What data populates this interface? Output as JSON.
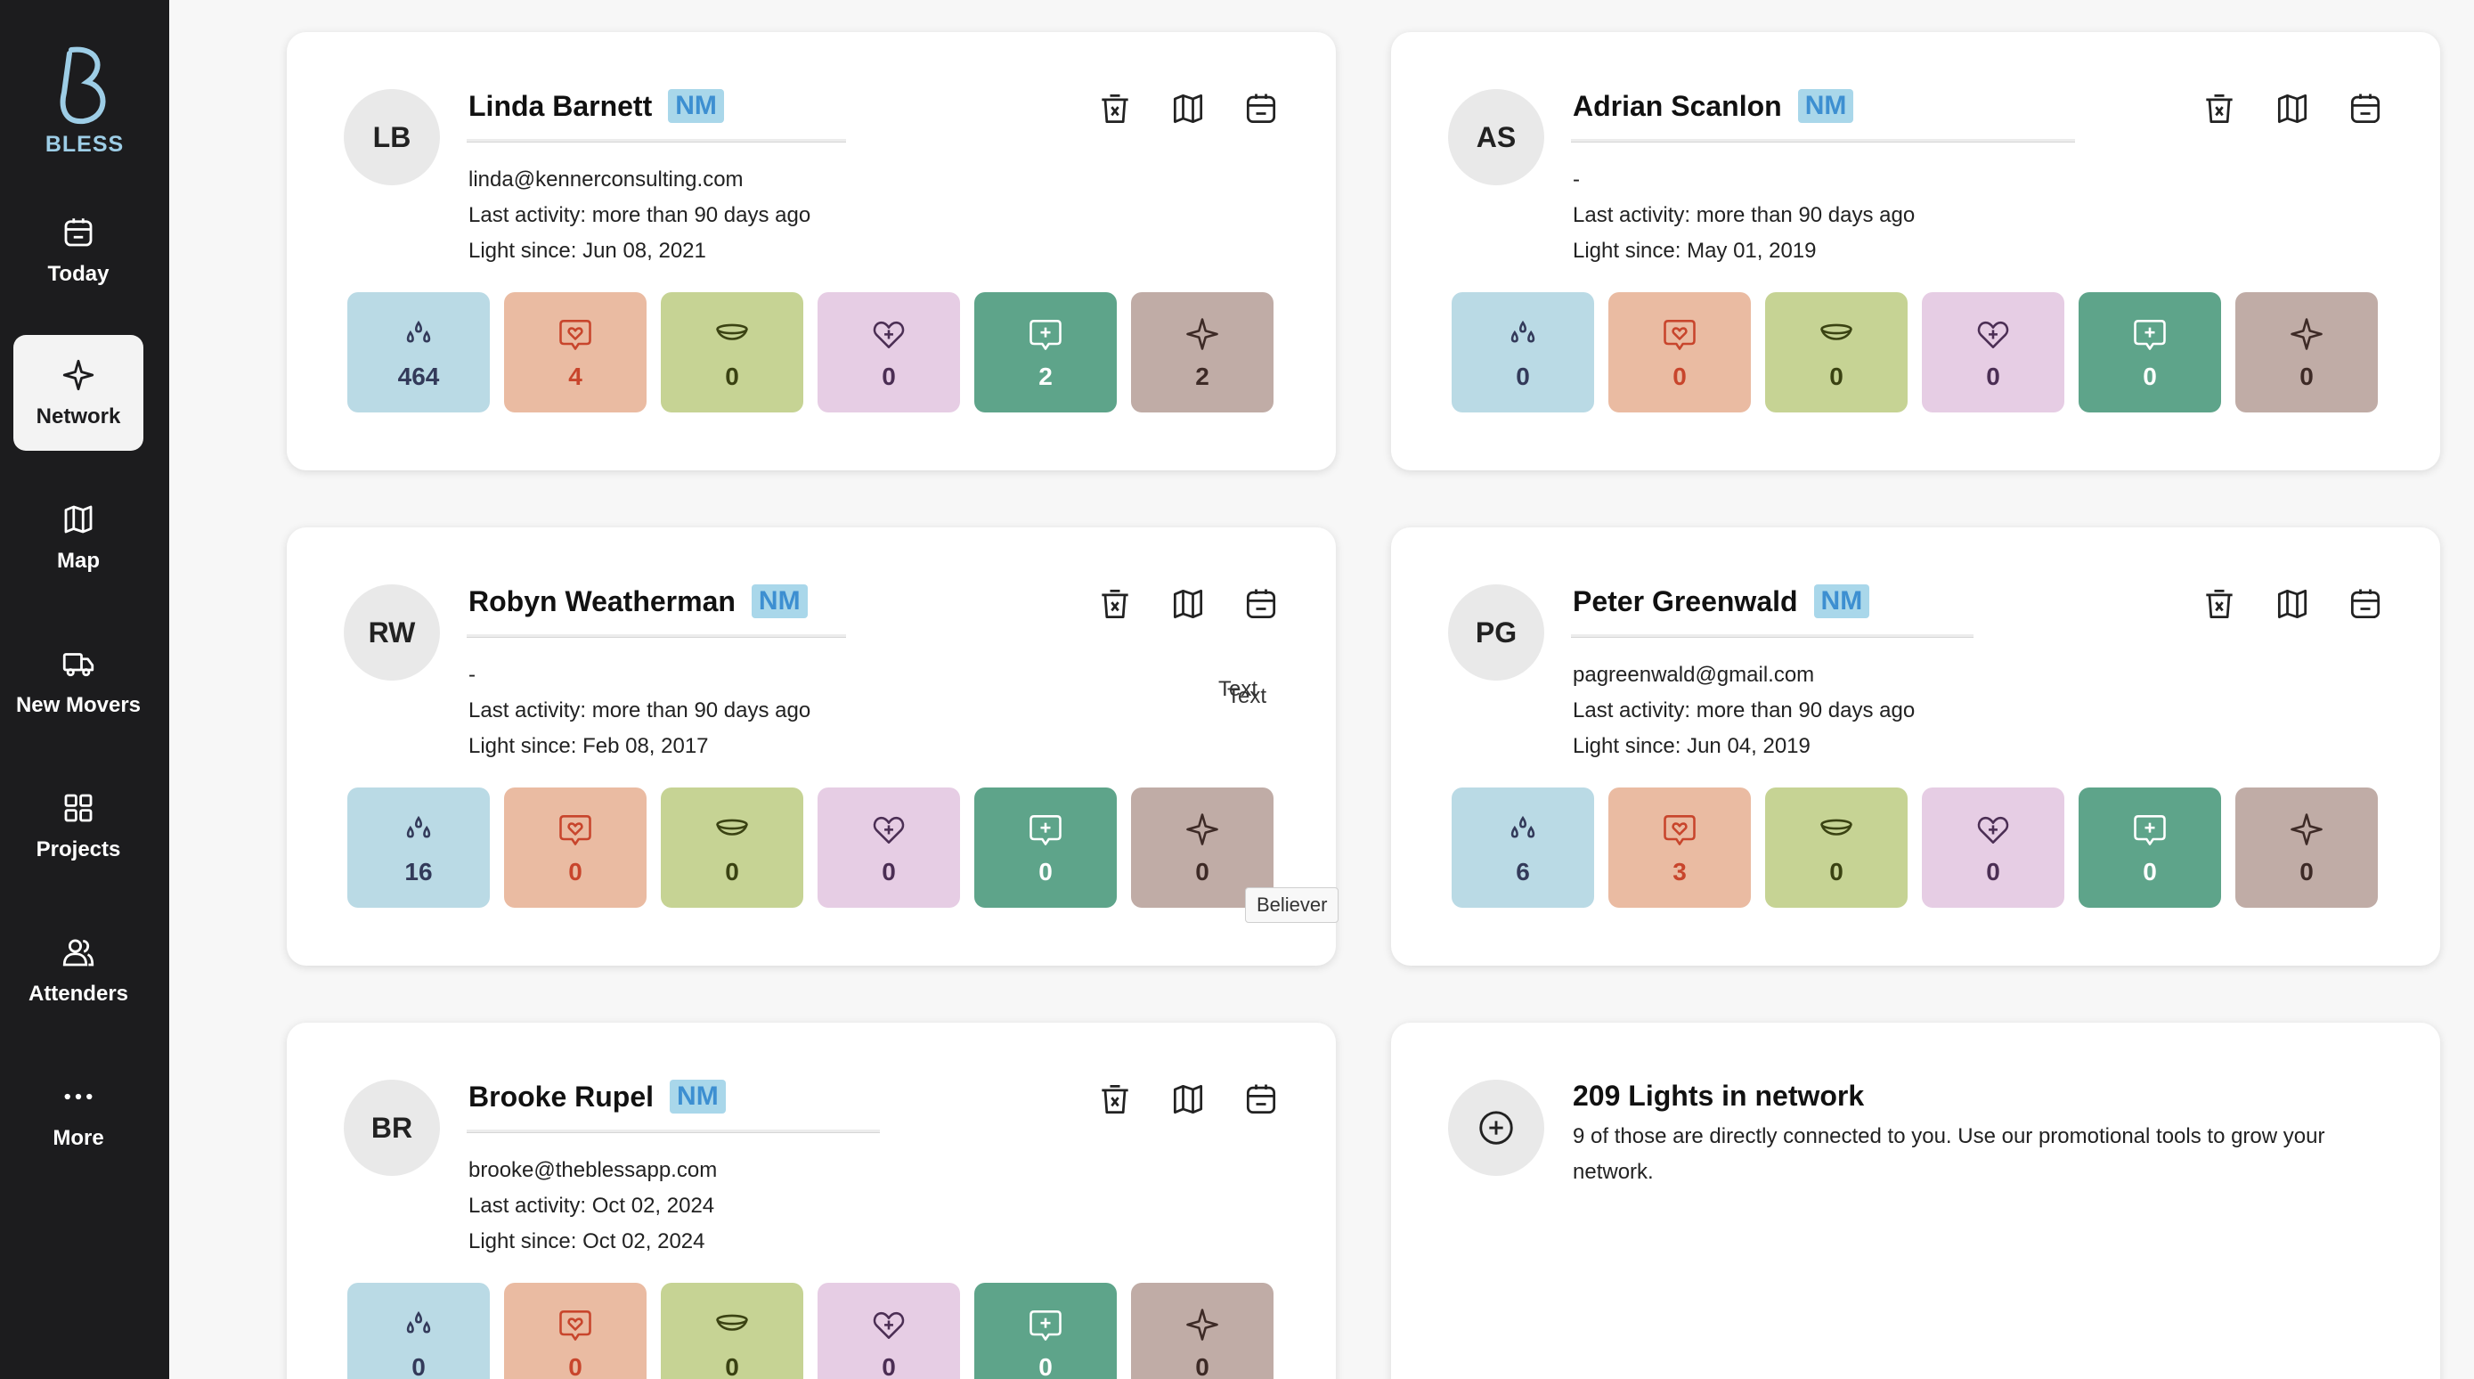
{
  "brand": {
    "logo_text": "BLESS",
    "accent": "#9dcde6"
  },
  "sidebar": {
    "items": [
      {
        "label": "Today",
        "icon": "calendar-icon",
        "active": false
      },
      {
        "label": "Network",
        "icon": "sparkle-icon",
        "active": true
      },
      {
        "label": "Map",
        "icon": "map-icon",
        "active": false
      },
      {
        "label": "New Movers",
        "icon": "truck-icon",
        "active": false
      },
      {
        "label": "Projects",
        "icon": "grid-icon",
        "active": false
      },
      {
        "label": "Attenders",
        "icon": "users-icon",
        "active": false
      },
      {
        "label": "More",
        "icon": "more-icon",
        "active": false
      }
    ]
  },
  "contacts": [
    {
      "initials": "LB",
      "name": "Linda Barnett",
      "badge": "NM",
      "email": "linda@kennerconsulting.com",
      "last_activity": "Last activity: more than 90 days ago",
      "light_since": "Light since: Jun 08, 2021",
      "stats": [
        464,
        4,
        0,
        0,
        2,
        2
      ]
    },
    {
      "initials": "AS",
      "name": "Adrian Scanlon",
      "badge": "NM",
      "email": "-",
      "last_activity": "Last activity: more than 90 days ago",
      "light_since": "Light since: May 01, 2019",
      "stats": [
        0,
        0,
        0,
        0,
        0,
        0
      ]
    },
    {
      "initials": "RW",
      "name": "Robyn Weatherman",
      "badge": "NM",
      "email": "-",
      "last_activity": "Last activity: more than 90 days ago",
      "light_since": "Light since: Feb 08, 2017",
      "stats": [
        16,
        0,
        0,
        0,
        0,
        0
      ]
    },
    {
      "initials": "PG",
      "name": "Peter Greenwald",
      "badge": "NM",
      "email": "pagreenwald@gmail.com",
      "last_activity": "Last activity: more than 90 days ago",
      "light_since": "Light since: Jun 04, 2019",
      "stats": [
        6,
        3,
        0,
        0,
        0,
        0
      ]
    },
    {
      "initials": "BR",
      "name": "Brooke Rupel",
      "badge": "NM",
      "email": "brooke@theblessapp.com",
      "last_activity": "Last activity: Oct 02, 2024",
      "light_since": "Light since: Oct 02, 2024",
      "stats": [
        0,
        0,
        0,
        0,
        0,
        0
      ]
    }
  ],
  "stat_icons": [
    "drops-icon",
    "heart-chat-icon",
    "bowl-icon",
    "heart-plus-icon",
    "chat-plus-icon",
    "sparkle-icon"
  ],
  "stat_colors": [
    "#badae5",
    "#eabba2",
    "#c6d394",
    "#e6cde4",
    "#5ea48a",
    "#c0aca6"
  ],
  "tooltip": {
    "text": "Believer"
  },
  "stray_text": {
    "t1": "Text",
    "t2": "Text"
  },
  "network_summary": {
    "title": "209 Lights in network",
    "description": "9 of those are directly connected to you. Use our promotional tools to grow your network."
  }
}
